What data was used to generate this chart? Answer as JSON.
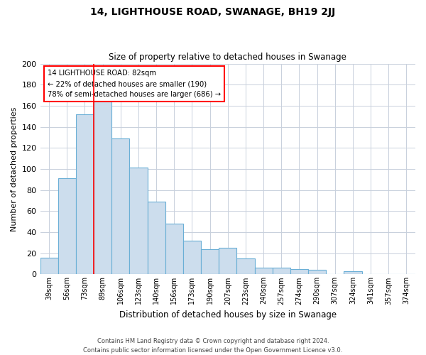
{
  "title": "14, LIGHTHOUSE ROAD, SWANAGE, BH19 2JJ",
  "subtitle": "Size of property relative to detached houses in Swanage",
  "xlabel": "Distribution of detached houses by size in Swanage",
  "ylabel": "Number of detached properties",
  "categories": [
    "39sqm",
    "56sqm",
    "73sqm",
    "89sqm",
    "106sqm",
    "123sqm",
    "140sqm",
    "156sqm",
    "173sqm",
    "190sqm",
    "207sqm",
    "223sqm",
    "240sqm",
    "257sqm",
    "274sqm",
    "290sqm",
    "307sqm",
    "324sqm",
    "341sqm",
    "357sqm",
    "374sqm"
  ],
  "values": [
    16,
    91,
    152,
    165,
    129,
    101,
    69,
    48,
    32,
    24,
    25,
    15,
    6,
    6,
    5,
    4,
    0,
    3,
    0,
    0,
    0
  ],
  "bar_color": "#ccdded",
  "bar_edge_color": "#6aafd6",
  "background_color": "#ffffff",
  "grid_color": "#c8d0dc",
  "annotation_line1": "14 LIGHTHOUSE ROAD: 82sqm",
  "annotation_line2": "← 22% of detached houses are smaller (190)",
  "annotation_line3": "78% of semi-detached houses are larger (686) →",
  "redline_x": 2.5,
  "ylim": [
    0,
    200
  ],
  "yticks": [
    0,
    20,
    40,
    60,
    80,
    100,
    120,
    140,
    160,
    180,
    200
  ],
  "footer_line1": "Contains HM Land Registry data © Crown copyright and database right 2024.",
  "footer_line2": "Contains public sector information licensed under the Open Government Licence v3.0."
}
